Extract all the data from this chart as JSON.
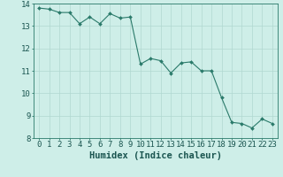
{
  "x": [
    0,
    1,
    2,
    3,
    4,
    5,
    6,
    7,
    8,
    9,
    10,
    11,
    12,
    13,
    14,
    15,
    16,
    17,
    18,
    19,
    20,
    21,
    22,
    23
  ],
  "y": [
    13.8,
    13.75,
    13.6,
    13.6,
    13.1,
    13.4,
    13.1,
    13.55,
    13.35,
    13.4,
    11.3,
    11.55,
    11.45,
    10.9,
    11.35,
    11.4,
    11.0,
    11.0,
    9.8,
    8.7,
    8.65,
    8.45,
    8.85,
    8.65
  ],
  "xlabel": "Humidex (Indice chaleur)",
  "ylim": [
    8,
    14
  ],
  "xlim": [
    -0.5,
    23.5
  ],
  "yticks": [
    8,
    9,
    10,
    11,
    12,
    13,
    14
  ],
  "xticks": [
    0,
    1,
    2,
    3,
    4,
    5,
    6,
    7,
    8,
    9,
    10,
    11,
    12,
    13,
    14,
    15,
    16,
    17,
    18,
    19,
    20,
    21,
    22,
    23
  ],
  "line_color": "#2a7a6a",
  "marker_color": "#2a7a6a",
  "bg_color": "#ceeee8",
  "grid_color": "#b0d8d0",
  "tick_label_fontsize": 6.5,
  "xlabel_fontsize": 7.5
}
